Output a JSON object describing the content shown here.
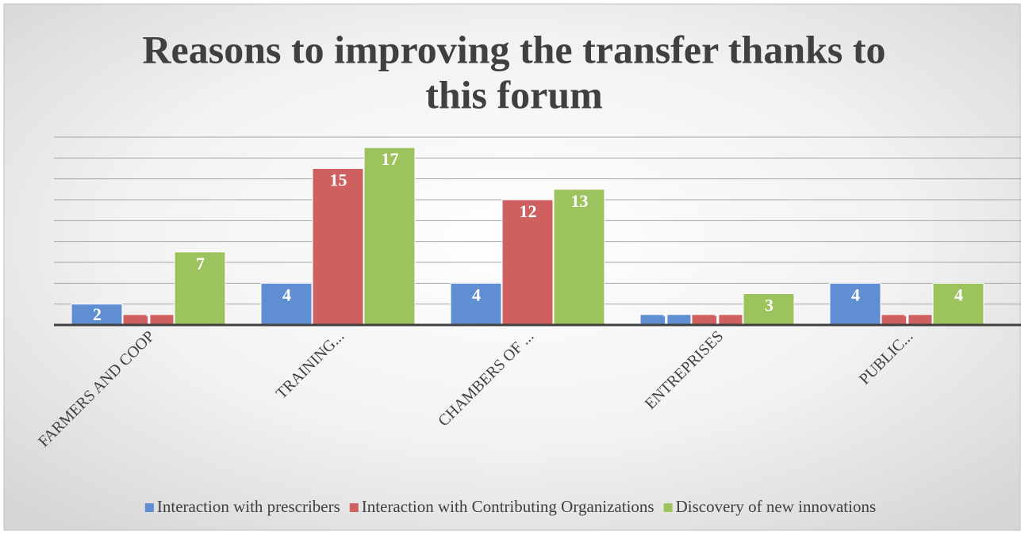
{
  "chart_data": {
    "type": "bar",
    "title": [
      "Reasons to improving the transfer thanks to",
      "this forum"
    ],
    "categories": [
      "FARMERS AND COOP",
      "TRAINING...",
      "CHAMBERS OF ...",
      "ENTREPRISES",
      "PUBLIC..."
    ],
    "series": [
      {
        "name": "Interaction with prescribers",
        "color": "#5f8fd2",
        "values": [
          2,
          4,
          4,
          1,
          4
        ]
      },
      {
        "name": "Interaction with Contributing Organizations",
        "color": "#cf6060",
        "values": [
          1,
          15,
          12,
          1,
          1
        ]
      },
      {
        "name": "Discovery of new innovations",
        "color": "#9dc35f",
        "values": [
          7,
          17,
          13,
          3,
          4
        ]
      }
    ],
    "ylim": [
      0,
      18
    ],
    "yticks": [
      0,
      2,
      4,
      6,
      8,
      10,
      12,
      14,
      16,
      18
    ],
    "grid": true,
    "legend": "bottom"
  }
}
